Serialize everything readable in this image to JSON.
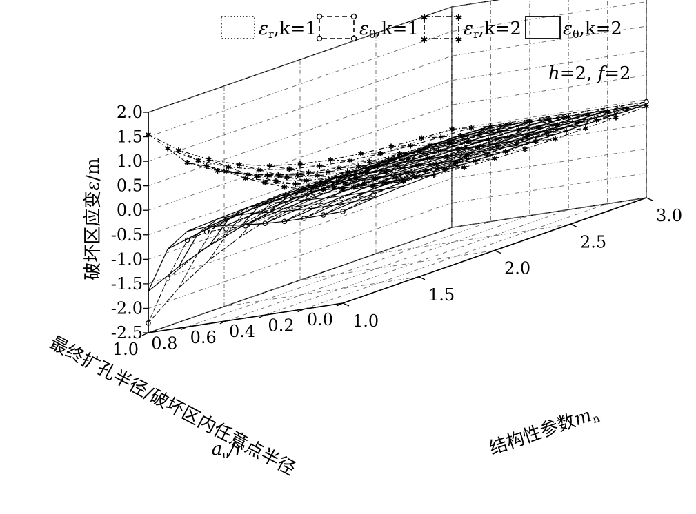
{
  "chart_data": {
    "type": "surface3d",
    "title": "",
    "annotation": "h=2, f=2",
    "annotation_parts": {
      "h_label": "h",
      "h_value": "=2, ",
      "f_label": "f",
      "f_value": "=2"
    },
    "zlabel": "破坏区应变ε/m",
    "zlabel_parts": {
      "text": "破坏区应变",
      "symbol": "ε",
      "unit": "/m"
    },
    "ylabel": "最终扩孔半径/破坏区内任意点半径",
    "ylabel_sub": "au/r",
    "ylabel_sub_parts": {
      "a": "a",
      "sub": "u",
      "rest": "/r"
    },
    "xlabel": "结构性参数mn",
    "xlabel_parts": {
      "text": "结构性参数",
      "m": "m",
      "sub": "n"
    },
    "x_ticks": [
      "1.0",
      "1.5",
      "2.0",
      "2.5",
      "3.0"
    ],
    "y_ticks": [
      "0.0",
      "0.2",
      "0.4",
      "0.6",
      "0.8",
      "1.0"
    ],
    "z_ticks": [
      "-2.5",
      "-2.0",
      "-1.5",
      "-1.0",
      "-0.5",
      "0.0",
      "0.5",
      "1.0",
      "1.5",
      "2.0"
    ],
    "xlim": [
      1.0,
      3.0
    ],
    "ylim": [
      0.0,
      1.0
    ],
    "zlim": [
      -2.5,
      2.0
    ],
    "grid": true,
    "legend_position": "top",
    "x_values": [
      1.0,
      1.2,
      1.4,
      1.6,
      1.8,
      2.0,
      2.2,
      2.4,
      2.6,
      2.8,
      3.0
    ],
    "y_values": [
      0.0,
      0.1,
      0.2,
      0.3,
      0.4,
      0.5,
      0.6,
      0.7,
      0.8,
      0.9,
      1.0
    ],
    "series": [
      {
        "name": "εr,k=1",
        "name_parts": {
          "eps": "ε",
          "sub": "r",
          "k": ",k",
          "val": "=1"
        },
        "style": "dotted",
        "peak_at_m1": [
          -2.3,
          -1.45,
          -0.73,
          -0.62,
          -0.62,
          -0.62,
          -0.63,
          -0.65,
          -0.65,
          -0.64,
          -0.63
        ],
        "edge_at_a1": [
          -2.3,
          -2.14,
          -1.98,
          -1.84,
          -1.71,
          -1.6,
          -1.5,
          -1.41,
          -1.33,
          -1.27,
          -1.22
        ]
      },
      {
        "name": "εθ,k=1",
        "name_parts": {
          "eps": "ε",
          "sub": "θ",
          "k": ",k",
          "val": "=1"
        },
        "style": "dashed",
        "peak_at_m1": [
          -2.3,
          -1.45,
          -0.73,
          -0.62,
          -0.62,
          -0.62,
          -0.63,
          -0.65,
          -0.65,
          -0.64,
          -0.63
        ],
        "edge_at_a1": [
          -2.3,
          -2.14,
          -1.98,
          -1.84,
          -1.71,
          -1.6,
          -1.5,
          -1.41,
          -1.33,
          -1.27,
          -1.22
        ]
      },
      {
        "name": "εr,k=2",
        "name_parts": {
          "eps": "ε",
          "sub": "r",
          "k": ",k",
          "val": "=2"
        },
        "style": "dash-dot",
        "peak_at_m1": [
          1.55,
          1.2,
          0.85,
          0.72,
          0.55,
          0.35,
          0.2,
          0.05,
          -0.05,
          -0.12,
          -0.18
        ],
        "edge_at_a1": [
          1.55,
          1.42,
          1.28,
          1.1,
          0.9,
          0.7,
          0.5,
          0.35,
          0.22,
          0.12,
          0.05
        ]
      },
      {
        "name": "εθ,k=2",
        "name_parts": {
          "eps": "ε",
          "sub": "θ",
          "k": ",k",
          "val": "=2"
        },
        "style": "solid",
        "peak_at_m1": [
          -1.65,
          -0.85,
          -0.55,
          -0.52,
          -0.55,
          -0.6,
          -0.63,
          -0.65,
          -0.65,
          -0.64,
          -0.63
        ],
        "edge_at_a1": [
          -1.65,
          -1.58,
          -1.5,
          -1.42,
          -1.36,
          -1.32,
          -1.28,
          -1.25,
          -1.23,
          -1.21,
          -1.2
        ]
      }
    ]
  }
}
